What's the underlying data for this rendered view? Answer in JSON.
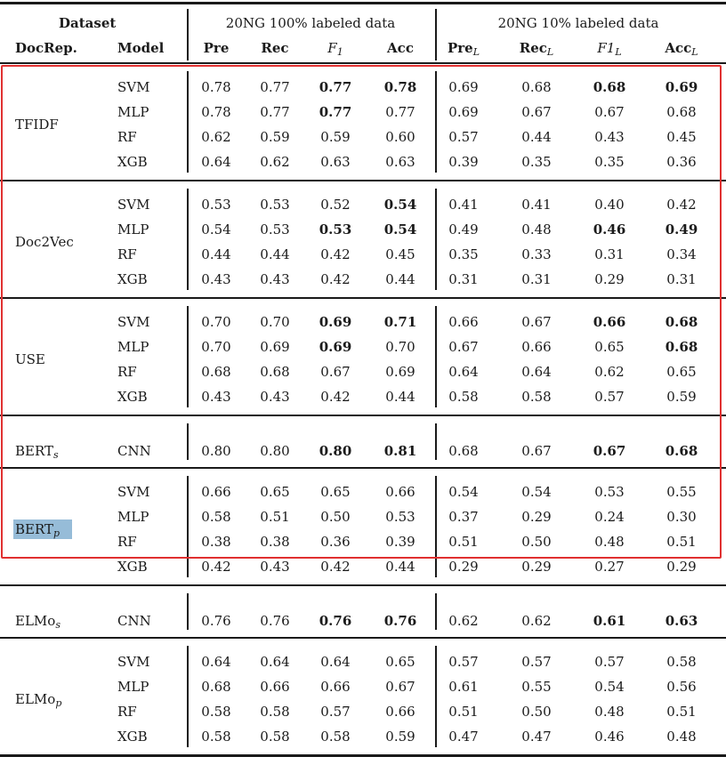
{
  "header": {
    "dataset_label": "Dataset",
    "group1_title": "20NG 100% labeled data",
    "group2_title": "20NG 10% labeled data",
    "docrep_label": "DocRep.",
    "model_label": "Model",
    "cols_group1": [
      {
        "main": "Pre",
        "sub": ""
      },
      {
        "main": "Rec",
        "sub": ""
      },
      {
        "main": "F",
        "sub": "1"
      },
      {
        "main": "Acc",
        "sub": ""
      }
    ],
    "cols_group2": [
      {
        "main": "Pre",
        "sub": "L"
      },
      {
        "main": "Rec",
        "sub": "L"
      },
      {
        "main": "F1",
        "sub": "L"
      },
      {
        "main": "Acc",
        "sub": "L"
      }
    ]
  },
  "groups": [
    {
      "docrep": "TFIDF",
      "docrep_sub": "",
      "rows": [
        {
          "model": "SVM",
          "values": [
            "0.78",
            "0.77",
            "0.77",
            "0.78",
            "0.69",
            "0.68",
            "0.68",
            "0.69"
          ],
          "bold": [
            2,
            3,
            6,
            7
          ]
        },
        {
          "model": "MLP",
          "values": [
            "0.78",
            "0.77",
            "0.77",
            "0.77",
            "0.69",
            "0.67",
            "0.67",
            "0.68"
          ],
          "bold": [
            2
          ]
        },
        {
          "model": "RF",
          "values": [
            "0.62",
            "0.59",
            "0.59",
            "0.60",
            "0.57",
            "0.44",
            "0.43",
            "0.45"
          ],
          "bold": []
        },
        {
          "model": "XGB",
          "values": [
            "0.64",
            "0.62",
            "0.63",
            "0.63",
            "0.39",
            "0.35",
            "0.35",
            "0.36"
          ],
          "bold": []
        }
      ]
    },
    {
      "docrep": "Doc2Vec",
      "docrep_sub": "",
      "rows": [
        {
          "model": "SVM",
          "values": [
            "0.53",
            "0.53",
            "0.52",
            "0.54",
            "0.41",
            "0.41",
            "0.40",
            "0.42"
          ],
          "bold": [
            3
          ]
        },
        {
          "model": "MLP",
          "values": [
            "0.54",
            "0.53",
            "0.53",
            "0.54",
            "0.49",
            "0.48",
            "0.46",
            "0.49"
          ],
          "bold": [
            2,
            3,
            6,
            7
          ]
        },
        {
          "model": "RF",
          "values": [
            "0.44",
            "0.44",
            "0.42",
            "0.45",
            "0.35",
            "0.33",
            "0.31",
            "0.34"
          ],
          "bold": []
        },
        {
          "model": "XGB",
          "values": [
            "0.43",
            "0.43",
            "0.42",
            "0.44",
            "0.31",
            "0.31",
            "0.29",
            "0.31"
          ],
          "bold": []
        }
      ]
    },
    {
      "docrep": "USE",
      "docrep_sub": "",
      "rows": [
        {
          "model": "SVM",
          "values": [
            "0.70",
            "0.70",
            "0.69",
            "0.71",
            "0.66",
            "0.67",
            "0.66",
            "0.68"
          ],
          "bold": [
            2,
            3,
            6,
            7
          ]
        },
        {
          "model": "MLP",
          "values": [
            "0.70",
            "0.69",
            "0.69",
            "0.70",
            "0.67",
            "0.66",
            "0.65",
            "0.68"
          ],
          "bold": [
            2,
            7
          ]
        },
        {
          "model": "RF",
          "values": [
            "0.68",
            "0.68",
            "0.67",
            "0.69",
            "0.64",
            "0.64",
            "0.62",
            "0.65"
          ],
          "bold": []
        },
        {
          "model": "XGB",
          "values": [
            "0.43",
            "0.43",
            "0.42",
            "0.44",
            "0.58",
            "0.58",
            "0.57",
            "0.59"
          ],
          "bold": []
        }
      ]
    },
    {
      "docrep": "BERT",
      "docrep_sub": "s",
      "rows": [
        {
          "model": "CNN",
          "values": [
            "0.80",
            "0.80",
            "0.80",
            "0.81",
            "0.68",
            "0.67",
            "0.67",
            "0.68"
          ],
          "bold": [
            2,
            3,
            6,
            7
          ]
        }
      ]
    },
    {
      "docrep": "BERT",
      "docrep_sub": "p",
      "highlight": true,
      "rows": [
        {
          "model": "SVM",
          "values": [
            "0.66",
            "0.65",
            "0.65",
            "0.66",
            "0.54",
            "0.54",
            "0.53",
            "0.55"
          ],
          "bold": []
        },
        {
          "model": "MLP",
          "values": [
            "0.58",
            "0.51",
            "0.50",
            "0.53",
            "0.37",
            "0.29",
            "0.24",
            "0.30"
          ],
          "bold": []
        },
        {
          "model": "RF",
          "values": [
            "0.38",
            "0.38",
            "0.36",
            "0.39",
            "0.51",
            "0.50",
            "0.48",
            "0.51"
          ],
          "bold": []
        },
        {
          "model": "XGB",
          "values": [
            "0.42",
            "0.43",
            "0.42",
            "0.44",
            "0.29",
            "0.29",
            "0.27",
            "0.29"
          ],
          "bold": []
        }
      ]
    },
    {
      "docrep": "ELMo",
      "docrep_sub": "s",
      "rows": [
        {
          "model": "CNN",
          "values": [
            "0.76",
            "0.76",
            "0.76",
            "0.76",
            "0.62",
            "0.62",
            "0.61",
            "0.63"
          ],
          "bold": [
            2,
            3,
            6,
            7
          ]
        }
      ]
    },
    {
      "docrep": "ELMo",
      "docrep_sub": "p",
      "rows": [
        {
          "model": "SVM",
          "values": [
            "0.64",
            "0.64",
            "0.64",
            "0.65",
            "0.57",
            "0.57",
            "0.57",
            "0.58"
          ],
          "bold": []
        },
        {
          "model": "MLP",
          "values": [
            "0.68",
            "0.66",
            "0.66",
            "0.67",
            "0.61",
            "0.55",
            "0.54",
            "0.56"
          ],
          "bold": []
        },
        {
          "model": "RF",
          "values": [
            "0.58",
            "0.58",
            "0.57",
            "0.66",
            "0.51",
            "0.50",
            "0.48",
            "0.51"
          ],
          "bold": []
        },
        {
          "model": "XGB",
          "values": [
            "0.58",
            "0.58",
            "0.58",
            "0.59",
            "0.47",
            "0.47",
            "0.46",
            "0.48"
          ],
          "bold": []
        }
      ]
    }
  ],
  "selection_box_color": "#e03030",
  "highlight_color": "#96bcd8"
}
